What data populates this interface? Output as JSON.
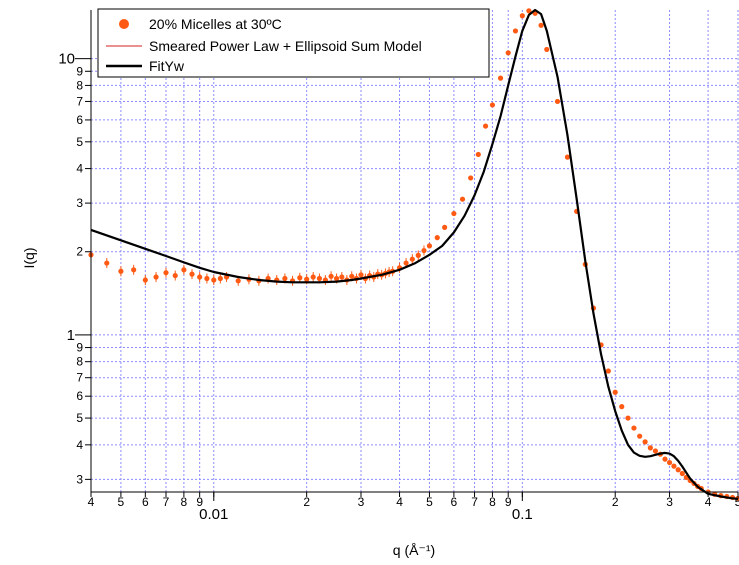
{
  "chart_data": {
    "type": "scatter",
    "title": "",
    "xlabel": "q (Å⁻¹)",
    "ylabel": "I(q)",
    "xscale": "log",
    "yscale": "log",
    "xlim": [
      0.004,
      0.5
    ],
    "ylim": [
      0.27,
      15
    ],
    "grid": true,
    "legend_position": "top-left",
    "x_major_ticks": [
      {
        "value": 0.01,
        "label": "0.01"
      },
      {
        "value": 0.1,
        "label": "0.1"
      }
    ],
    "x_minor_ticks": [
      {
        "value": 0.004,
        "label": "4"
      },
      {
        "value": 0.005,
        "label": "5"
      },
      {
        "value": 0.006,
        "label": "6"
      },
      {
        "value": 0.007,
        "label": "7"
      },
      {
        "value": 0.008,
        "label": "8"
      },
      {
        "value": 0.009,
        "label": "9"
      },
      {
        "value": 0.02,
        "label": "2"
      },
      {
        "value": 0.03,
        "label": "3"
      },
      {
        "value": 0.04,
        "label": "4"
      },
      {
        "value": 0.05,
        "label": "5"
      },
      {
        "value": 0.06,
        "label": "6"
      },
      {
        "value": 0.07,
        "label": "7"
      },
      {
        "value": 0.08,
        "label": "8"
      },
      {
        "value": 0.09,
        "label": "9"
      },
      {
        "value": 0.2,
        "label": "2"
      },
      {
        "value": 0.3,
        "label": "3"
      },
      {
        "value": 0.4,
        "label": "4"
      },
      {
        "value": 0.5,
        "label": "5"
      }
    ],
    "y_major_ticks": [
      {
        "value": 1,
        "label": "1"
      },
      {
        "value": 10,
        "label": "10"
      }
    ],
    "y_minor_ticks": [
      {
        "value": 0.3,
        "label": "3"
      },
      {
        "value": 0.4,
        "label": "4"
      },
      {
        "value": 0.5,
        "label": "5"
      },
      {
        "value": 0.6,
        "label": "6"
      },
      {
        "value": 0.7,
        "label": "7"
      },
      {
        "value": 0.8,
        "label": "8"
      },
      {
        "value": 0.9,
        "label": "9"
      },
      {
        "value": 2,
        "label": "2"
      },
      {
        "value": 3,
        "label": "3"
      },
      {
        "value": 4,
        "label": "4"
      },
      {
        "value": 5,
        "label": "5"
      },
      {
        "value": 6,
        "label": "6"
      },
      {
        "value": 7,
        "label": "7"
      },
      {
        "value": 8,
        "label": "8"
      },
      {
        "value": 9,
        "label": "9"
      }
    ],
    "series": [
      {
        "name": "20% Micelles at 30ºC",
        "kind": "scatter",
        "color": "#ff5a14",
        "x": [
          0.004,
          0.0045,
          0.005,
          0.0055,
          0.006,
          0.0065,
          0.007,
          0.0075,
          0.008,
          0.0085,
          0.009,
          0.0095,
          0.01,
          0.0105,
          0.011,
          0.012,
          0.013,
          0.014,
          0.015,
          0.016,
          0.017,
          0.018,
          0.019,
          0.02,
          0.021,
          0.022,
          0.023,
          0.024,
          0.025,
          0.026,
          0.027,
          0.028,
          0.029,
          0.03,
          0.031,
          0.032,
          0.033,
          0.034,
          0.035,
          0.036,
          0.037,
          0.038,
          0.04,
          0.042,
          0.044,
          0.046,
          0.048,
          0.05,
          0.053,
          0.056,
          0.06,
          0.064,
          0.068,
          0.072,
          0.076,
          0.08,
          0.085,
          0.09,
          0.095,
          0.1,
          0.105,
          0.11,
          0.115,
          0.12,
          0.13,
          0.14,
          0.15,
          0.16,
          0.17,
          0.18,
          0.19,
          0.2,
          0.21,
          0.22,
          0.23,
          0.24,
          0.25,
          0.26,
          0.27,
          0.28,
          0.29,
          0.3,
          0.31,
          0.32,
          0.33,
          0.34,
          0.35,
          0.36,
          0.37,
          0.38,
          0.4,
          0.42,
          0.44,
          0.46,
          0.48,
          0.5
        ],
        "y": [
          1.95,
          1.82,
          1.7,
          1.72,
          1.58,
          1.62,
          1.68,
          1.64,
          1.72,
          1.66,
          1.62,
          1.6,
          1.58,
          1.6,
          1.62,
          1.57,
          1.59,
          1.57,
          1.6,
          1.58,
          1.6,
          1.57,
          1.61,
          1.59,
          1.62,
          1.6,
          1.58,
          1.63,
          1.6,
          1.62,
          1.58,
          1.63,
          1.6,
          1.65,
          1.6,
          1.64,
          1.62,
          1.66,
          1.65,
          1.67,
          1.69,
          1.7,
          1.75,
          1.82,
          1.88,
          1.94,
          2.02,
          2.1,
          2.25,
          2.45,
          2.75,
          3.1,
          3.7,
          4.5,
          5.7,
          6.8,
          8.5,
          10.5,
          12.6,
          14.3,
          14.9,
          14.6,
          13.2,
          10.8,
          7.0,
          4.4,
          2.8,
          1.8,
          1.25,
          0.92,
          0.74,
          0.62,
          0.55,
          0.5,
          0.46,
          0.43,
          0.41,
          0.39,
          0.38,
          0.37,
          0.355,
          0.345,
          0.335,
          0.325,
          0.315,
          0.305,
          0.297,
          0.29,
          0.283,
          0.278,
          0.27,
          0.265,
          0.262,
          0.26,
          0.258,
          0.256
        ]
      },
      {
        "name": "Smeared Power Law + Ellipsoid Sum Model",
        "kind": "line",
        "color": "#d42020"
      },
      {
        "name": "FitYw",
        "kind": "line",
        "color": "#000000",
        "x": [
          0.004,
          0.005,
          0.006,
          0.007,
          0.008,
          0.009,
          0.01,
          0.012,
          0.014,
          0.016,
          0.018,
          0.02,
          0.022,
          0.025,
          0.028,
          0.03,
          0.035,
          0.04,
          0.045,
          0.05,
          0.055,
          0.06,
          0.065,
          0.07,
          0.075,
          0.08,
          0.085,
          0.09,
          0.095,
          0.1,
          0.105,
          0.11,
          0.115,
          0.12,
          0.13,
          0.14,
          0.15,
          0.16,
          0.17,
          0.18,
          0.19,
          0.2,
          0.21,
          0.22,
          0.23,
          0.24,
          0.25,
          0.26,
          0.27,
          0.28,
          0.29,
          0.3,
          0.31,
          0.32,
          0.33,
          0.34,
          0.35,
          0.37,
          0.4,
          0.44,
          0.48,
          0.5
        ],
        "y": [
          2.4,
          2.2,
          2.05,
          1.93,
          1.83,
          1.75,
          1.69,
          1.62,
          1.58,
          1.56,
          1.55,
          1.55,
          1.55,
          1.56,
          1.58,
          1.6,
          1.65,
          1.72,
          1.82,
          1.95,
          2.1,
          2.35,
          2.7,
          3.2,
          3.9,
          4.9,
          6.2,
          8.0,
          10.2,
          12.6,
          14.4,
          15.0,
          14.5,
          12.6,
          8.6,
          5.3,
          3.1,
          1.85,
          1.2,
          0.85,
          0.65,
          0.53,
          0.45,
          0.4,
          0.375,
          0.365,
          0.362,
          0.364,
          0.368,
          0.372,
          0.374,
          0.372,
          0.364,
          0.35,
          0.334,
          0.317,
          0.302,
          0.282,
          0.266,
          0.26,
          0.256,
          0.255
        ]
      }
    ]
  }
}
